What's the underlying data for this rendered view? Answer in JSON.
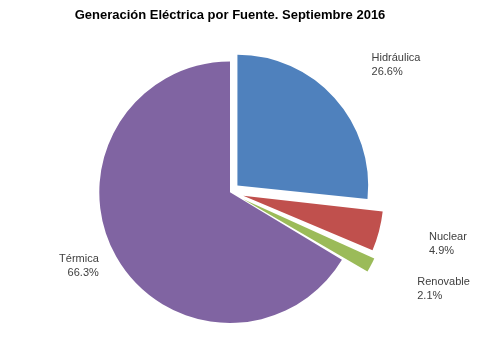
{
  "chart_data": {
    "type": "pie",
    "title": "Generación Eléctrica por Fuente. Septiembre 2016",
    "categories": [
      "Hidráulica",
      "Nuclear",
      "Renovable",
      "Térmica"
    ],
    "values": [
      26.6,
      4.9,
      2.1,
      66.3
    ],
    "value_labels": [
      "26.6%",
      "4.9%",
      "2.1%",
      "66.3%"
    ],
    "colors": [
      "#4f81bd",
      "#c0504d",
      "#9bbb59",
      "#8064a2"
    ],
    "data_labels": true
  }
}
